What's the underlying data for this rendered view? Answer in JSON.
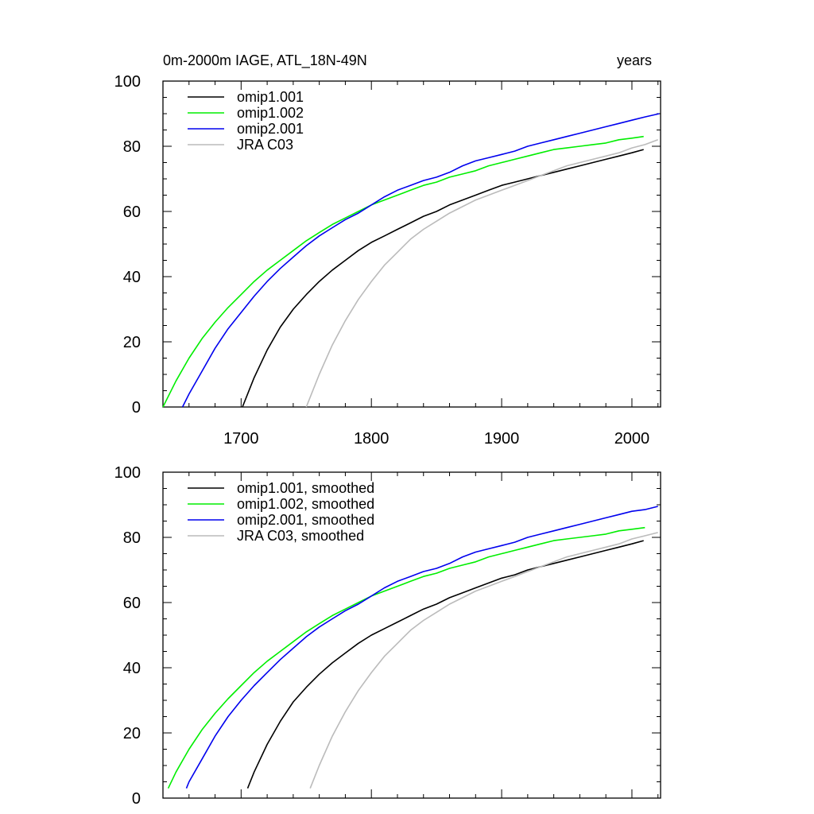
{
  "header": {
    "left_title": "0m-2000m IAGE, ATL_18N-49N",
    "right_title": "years"
  },
  "chart_data": [
    {
      "type": "line",
      "panel": "top",
      "xlim": [
        1640,
        2022
      ],
      "ylim": [
        0,
        100
      ],
      "x_ticks": [
        1700,
        1800,
        1900,
        2000
      ],
      "x_tick_labels": [
        "1700",
        "1800",
        "1900",
        "2000"
      ],
      "y_ticks": [
        0,
        20,
        40,
        60,
        80,
        100
      ],
      "y_tick_labels": [
        "0",
        "20",
        "40",
        "60",
        "80",
        "100"
      ],
      "legend_position": "top-left",
      "series": [
        {
          "name": "omip1.001",
          "color": "#000000",
          "x": [
            1701,
            1710,
            1720,
            1730,
            1740,
            1750,
            1760,
            1770,
            1780,
            1790,
            1800,
            1810,
            1820,
            1830,
            1840,
            1850,
            1860,
            1870,
            1880,
            1890,
            1900,
            1910,
            1920,
            1930,
            1940,
            1950,
            1960,
            1970,
            1980,
            1990,
            2000,
            2009
          ],
          "y": [
            0,
            9,
            17.5,
            24.5,
            30,
            34.5,
            38.5,
            42,
            45,
            48,
            50.5,
            52.5,
            54.5,
            56.5,
            58.5,
            60,
            62,
            63.5,
            65,
            66.5,
            68,
            69,
            70,
            71,
            72,
            73,
            74,
            75,
            76,
            77,
            78,
            79
          ]
        },
        {
          "name": "omip1.002",
          "color": "#00ee00",
          "x": [
            1640,
            1650,
            1660,
            1670,
            1680,
            1690,
            1700,
            1710,
            1720,
            1730,
            1740,
            1750,
            1760,
            1770,
            1780,
            1790,
            1800,
            1810,
            1820,
            1830,
            1840,
            1850,
            1860,
            1870,
            1880,
            1890,
            1900,
            1910,
            1920,
            1930,
            1940,
            1950,
            1960,
            1970,
            1980,
            1990,
            2000,
            2009
          ],
          "y": [
            0,
            8,
            15,
            21,
            26,
            30.5,
            34.5,
            38.5,
            42,
            45,
            48,
            51,
            53.5,
            56,
            58,
            60,
            62,
            63.5,
            65,
            66.5,
            68,
            69,
            70.5,
            71.5,
            72.5,
            74,
            75,
            76,
            77,
            78,
            79,
            79.5,
            80,
            80.5,
            81,
            82,
            82.5,
            83
          ]
        },
        {
          "name": "omip2.001",
          "color": "#0000ee",
          "x": [
            1655,
            1660,
            1670,
            1680,
            1690,
            1700,
            1710,
            1720,
            1730,
            1740,
            1750,
            1760,
            1770,
            1780,
            1790,
            1800,
            1810,
            1820,
            1830,
            1840,
            1850,
            1860,
            1870,
            1880,
            1890,
            1900,
            1910,
            1920,
            1930,
            1940,
            1950,
            1960,
            1970,
            1980,
            1990,
            2000,
            2010,
            2021
          ],
          "y": [
            0,
            4,
            11,
            18,
            24,
            29,
            34,
            38.5,
            42.5,
            46,
            49.5,
            52.5,
            55,
            57.5,
            59.5,
            62,
            64.5,
            66.5,
            68,
            69.5,
            70.5,
            72,
            74,
            75.5,
            76.5,
            77.5,
            78.5,
            80,
            81,
            82,
            83,
            84,
            85,
            86,
            87,
            88,
            89,
            90
          ]
        },
        {
          "name": "JRA C03",
          "color": "#bbbbbb",
          "x": [
            1750,
            1760,
            1770,
            1780,
            1790,
            1800,
            1810,
            1820,
            1830,
            1840,
            1850,
            1860,
            1870,
            1880,
            1890,
            1900,
            1910,
            1920,
            1930,
            1940,
            1950,
            1960,
            1970,
            1980,
            1990,
            2000,
            2010,
            2020
          ],
          "y": [
            0,
            10,
            19,
            26.5,
            33,
            38.5,
            43.5,
            47.5,
            51.5,
            54.5,
            57,
            59.5,
            61.5,
            63.5,
            65,
            66.5,
            68,
            69.5,
            71,
            72.5,
            74,
            75,
            76,
            77,
            78,
            79.5,
            80.5,
            82
          ]
        }
      ]
    },
    {
      "type": "line",
      "panel": "bottom",
      "xlim": [
        1640,
        2022
      ],
      "ylim": [
        0,
        100
      ],
      "y_ticks": [
        0,
        20,
        40,
        60,
        80,
        100
      ],
      "y_tick_labels": [
        "0",
        "20",
        "40",
        "60",
        "80",
        "100"
      ],
      "legend_position": "top-left",
      "series": [
        {
          "name": "omip1.001, smoothed",
          "color": "#000000",
          "x": [
            1705,
            1710,
            1720,
            1730,
            1740,
            1750,
            1760,
            1770,
            1780,
            1790,
            1800,
            1810,
            1820,
            1830,
            1840,
            1850,
            1860,
            1870,
            1880,
            1890,
            1900,
            1910,
            1920,
            1930,
            1940,
            1950,
            1960,
            1970,
            1980,
            1990,
            2000,
            2009
          ],
          "y": [
            3,
            8,
            16.5,
            23.5,
            29.5,
            34,
            38,
            41.5,
            44.5,
            47.5,
            50,
            52,
            54,
            56,
            58,
            59.5,
            61.5,
            63,
            64.5,
            66,
            67.5,
            68.5,
            70,
            71,
            72,
            73,
            74,
            75,
            76,
            77,
            78,
            79
          ]
        },
        {
          "name": "omip1.002, smoothed",
          "color": "#00ee00",
          "x": [
            1644,
            1650,
            1660,
            1670,
            1680,
            1690,
            1700,
            1710,
            1720,
            1730,
            1740,
            1750,
            1760,
            1770,
            1780,
            1790,
            1800,
            1810,
            1820,
            1830,
            1840,
            1850,
            1860,
            1870,
            1880,
            1890,
            1900,
            1910,
            1920,
            1930,
            1940,
            1950,
            1960,
            1970,
            1980,
            1990,
            2000,
            2010
          ],
          "y": [
            3,
            8,
            15,
            21,
            26,
            30.5,
            34.5,
            38.5,
            42,
            45,
            48,
            51,
            53.5,
            56,
            58,
            60,
            62,
            63.5,
            65,
            66.5,
            68,
            69,
            70.5,
            71.5,
            72.5,
            74,
            75,
            76,
            77,
            78,
            79,
            79.5,
            80,
            80.5,
            81,
            82,
            82.5,
            83
          ]
        },
        {
          "name": "omip2.001, smoothed",
          "color": "#0000ee",
          "x": [
            1658,
            1660,
            1670,
            1680,
            1690,
            1700,
            1710,
            1720,
            1730,
            1740,
            1750,
            1760,
            1770,
            1780,
            1790,
            1800,
            1810,
            1820,
            1830,
            1840,
            1850,
            1860,
            1870,
            1880,
            1890,
            1900,
            1910,
            1920,
            1930,
            1940,
            1950,
            1960,
            1970,
            1980,
            1990,
            2000,
            2010,
            2020
          ],
          "y": [
            3,
            5,
            12,
            19,
            25,
            30,
            34.5,
            38.5,
            42.5,
            46,
            49.5,
            52.5,
            55,
            57.5,
            59.5,
            62,
            64.5,
            66.5,
            68,
            69.5,
            70.5,
            72,
            74,
            75.5,
            76.5,
            77.5,
            78.5,
            80,
            81,
            82,
            83,
            84,
            85,
            86,
            87,
            88,
            88.5,
            89.5
          ]
        },
        {
          "name": "JRA C03, smoothed",
          "color": "#bbbbbb",
          "x": [
            1753,
            1760,
            1770,
            1780,
            1790,
            1800,
            1810,
            1820,
            1830,
            1840,
            1850,
            1860,
            1870,
            1880,
            1890,
            1900,
            1910,
            1920,
            1930,
            1940,
            1950,
            1960,
            1970,
            1980,
            1990,
            2000,
            2010,
            2020
          ],
          "y": [
            3,
            10,
            19,
            26.5,
            33,
            38.5,
            43.5,
            47.5,
            51.5,
            54.5,
            57,
            59.5,
            61.5,
            63.5,
            65,
            66.5,
            68,
            69.5,
            71,
            72.5,
            74,
            75,
            76,
            77,
            78,
            79.5,
            80.5,
            81.5
          ]
        }
      ]
    }
  ]
}
